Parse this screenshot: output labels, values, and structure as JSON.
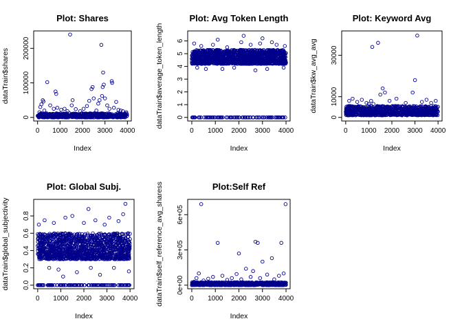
{
  "figure": {
    "point_color": "#00008B",
    "panels": [
      {
        "id": "shares",
        "title": "Plot: Shares",
        "xlabel": "Index",
        "ylabel": "dataTrain$shares",
        "xticks": [
          "0",
          "1000",
          "2000",
          "3000",
          "4000"
        ],
        "yticks": [
          "0",
          "100000",
          "200000"
        ]
      },
      {
        "id": "avg-token-length",
        "title": "Plot: Avg Token Length",
        "xlabel": "Index",
        "ylabel": "dataTrain$average_token_length",
        "xticks": [
          "0",
          "1000",
          "2000",
          "3000",
          "4000"
        ],
        "yticks": [
          "0",
          "1",
          "2",
          "3",
          "4",
          "5",
          "6"
        ]
      },
      {
        "id": "keyword-avg",
        "title": "Plot: Keyword Avg",
        "xlabel": "Index",
        "ylabel": "dataTrain$kw_avg_avg",
        "xticks": [
          "0",
          "1000",
          "2000",
          "3000",
          "4000"
        ],
        "yticks": [
          "0",
          "10000",
          "30000"
        ]
      },
      {
        "id": "global-subjectivity",
        "title": "Plot: Global Subj.",
        "xlabel": "Index",
        "ylabel": "dataTrain$global_subjectivity",
        "xticks": [
          "0",
          "1000",
          "2000",
          "3000",
          "4000"
        ],
        "yticks": [
          "0.0",
          "0.2",
          "0.4",
          "0.6",
          "0.8"
        ]
      },
      {
        "id": "self-ref",
        "title": "Plot:Self Ref",
        "xlabel": "Index",
        "ylabel": "dataTrain$self_reference_avg_sharess",
        "xticks": [
          "0",
          "1000",
          "2000",
          "3000",
          "4000"
        ],
        "yticks": [
          "0e+00",
          "3e+05",
          "6e+05"
        ]
      }
    ]
  },
  "chart_data": [
    {
      "type": "scatter",
      "title": "Plot: Shares",
      "xlabel": "Index",
      "ylabel": "dataTrain$shares",
      "xlim": [
        0,
        4000
      ],
      "ylim": [
        0,
        240000
      ],
      "grid": false,
      "yticks": [
        0,
        100000,
        200000
      ],
      "dense_band": {
        "y_min": 0,
        "y_max": 12000,
        "n": 600
      },
      "points": [
        [
          80,
          15000
        ],
        [
          120,
          30000
        ],
        [
          170,
          38000
        ],
        [
          230,
          50000
        ],
        [
          260,
          46000
        ],
        [
          300,
          20000
        ],
        [
          430,
          102000
        ],
        [
          560,
          35000
        ],
        [
          720,
          25000
        ],
        [
          800,
          75000
        ],
        [
          830,
          68000
        ],
        [
          880,
          28000
        ],
        [
          1050,
          22000
        ],
        [
          1200,
          25000
        ],
        [
          1330,
          18000
        ],
        [
          1450,
          240000
        ],
        [
          1520,
          35000
        ],
        [
          1560,
          50000
        ],
        [
          1700,
          24000
        ],
        [
          1900,
          18000
        ],
        [
          2050,
          25000
        ],
        [
          2200,
          33000
        ],
        [
          2300,
          48000
        ],
        [
          2400,
          82000
        ],
        [
          2450,
          88000
        ],
        [
          2500,
          55000
        ],
        [
          2620,
          20000
        ],
        [
          2700,
          40000
        ],
        [
          2760,
          50000
        ],
        [
          2840,
          210000
        ],
        [
          2870,
          62000
        ],
        [
          2900,
          88000
        ],
        [
          2920,
          130000
        ],
        [
          2950,
          95000
        ],
        [
          3000,
          55000
        ],
        [
          3100,
          35000
        ],
        [
          3200,
          25000
        ],
        [
          3300,
          105000
        ],
        [
          3320,
          100000
        ],
        [
          3400,
          28000
        ],
        [
          3500,
          45000
        ],
        [
          3600,
          22000
        ],
        [
          3700,
          20000
        ],
        [
          3800,
          18000
        ],
        [
          3950,
          15000
        ]
      ]
    },
    {
      "type": "scatter",
      "title": "Plot: Avg Token Length",
      "xlabel": "Index",
      "ylabel": "dataTrain$average_token_length",
      "xlim": [
        0,
        4000
      ],
      "ylim": [
        0,
        6.5
      ],
      "grid": false,
      "yticks": [
        0,
        1,
        2,
        3,
        4,
        5,
        6
      ],
      "dense_band": {
        "y_min": 4.2,
        "y_max": 5.3,
        "n": 1400
      },
      "zero_points": 90,
      "points": [
        [
          100,
          5.8
        ],
        [
          230,
          3.9
        ],
        [
          400,
          5.6
        ],
        [
          600,
          3.8
        ],
        [
          900,
          5.7
        ],
        [
          1100,
          6.1
        ],
        [
          1300,
          3.8
        ],
        [
          1500,
          5.5
        ],
        [
          1800,
          3.9
        ],
        [
          2100,
          5.9
        ],
        [
          2200,
          6.4
        ],
        [
          2500,
          5.7
        ],
        [
          2700,
          3.7
        ],
        [
          2900,
          5.8
        ],
        [
          3000,
          6.2
        ],
        [
          3200,
          3.8
        ],
        [
          3400,
          5.9
        ],
        [
          3600,
          5.7
        ],
        [
          3900,
          3.9
        ],
        [
          3950,
          5.6
        ]
      ]
    },
    {
      "type": "scatter",
      "title": "Plot: Keyword Avg",
      "xlabel": "Index",
      "ylabel": "dataTrain$kw_avg_avg",
      "xlim": [
        0,
        4000
      ],
      "ylim": [
        0,
        40000
      ],
      "grid": false,
      "yticks": [
        0,
        10000,
        30000
      ],
      "dense_band": {
        "y_min": 1000,
        "y_max": 5500,
        "n": 900
      },
      "points": [
        [
          150,
          8000
        ],
        [
          300,
          9000
        ],
        [
          500,
          7500
        ],
        [
          700,
          8500
        ],
        [
          900,
          7000
        ],
        [
          1000,
          6500
        ],
        [
          1100,
          8000
        ],
        [
          1150,
          34000
        ],
        [
          1200,
          6500
        ],
        [
          1400,
          36000
        ],
        [
          1500,
          11000
        ],
        [
          1600,
          14000
        ],
        [
          1700,
          12000
        ],
        [
          1900,
          8000
        ],
        [
          2200,
          9000
        ],
        [
          2600,
          7000
        ],
        [
          2900,
          12000
        ],
        [
          3000,
          18000
        ],
        [
          3100,
          39500
        ],
        [
          3300,
          7500
        ],
        [
          3500,
          8500
        ],
        [
          3700,
          7000
        ],
        [
          3900,
          8000
        ]
      ]
    },
    {
      "type": "scatter",
      "title": "Plot: Global Subj.",
      "xlabel": "Index",
      "ylabel": "dataTrain$global_subjectivity",
      "xlim": [
        0,
        4000
      ],
      "ylim": [
        0,
        0.95
      ],
      "grid": false,
      "yticks": [
        0.0,
        0.2,
        0.4,
        0.6,
        0.8
      ],
      "dense_band": {
        "y_min": 0.3,
        "y_max": 0.6,
        "n": 1300
      },
      "zero_points": 120,
      "points": [
        [
          50,
          0.7
        ],
        [
          300,
          0.75
        ],
        [
          500,
          0.2
        ],
        [
          700,
          0.72
        ],
        [
          900,
          0.18
        ],
        [
          1100,
          0.1
        ],
        [
          1200,
          0.78
        ],
        [
          1500,
          0.8
        ],
        [
          1700,
          0.15
        ],
        [
          2000,
          0.72
        ],
        [
          2200,
          0.88
        ],
        [
          2300,
          0.2
        ],
        [
          2500,
          0.75
        ],
        [
          2700,
          0.12
        ],
        [
          2900,
          0.7
        ],
        [
          3100,
          0.78
        ],
        [
          3300,
          0.2
        ],
        [
          3500,
          0.74
        ],
        [
          3700,
          0.82
        ],
        [
          3800,
          0.94
        ],
        [
          3950,
          0.16
        ]
      ]
    },
    {
      "type": "scatter",
      "title": "Plot:Self Ref",
      "xlabel": "Index",
      "ylabel": "dataTrain$self_reference_avg_sharess",
      "xlim": [
        0,
        4000
      ],
      "ylim": [
        0,
        700000
      ],
      "grid": false,
      "yticks": [
        0,
        300000,
        600000
      ],
      "dense_band": {
        "y_min": 0,
        "y_max": 25000,
        "n": 700
      },
      "points": [
        [
          100,
          30000
        ],
        [
          200,
          60000
        ],
        [
          300,
          100000
        ],
        [
          400,
          690000
        ],
        [
          500,
          40000
        ],
        [
          700,
          55000
        ],
        [
          900,
          70000
        ],
        [
          1100,
          360000
        ],
        [
          1300,
          80000
        ],
        [
          1500,
          45000
        ],
        [
          1700,
          60000
        ],
        [
          1900,
          95000
        ],
        [
          2000,
          270000
        ],
        [
          2100,
          50000
        ],
        [
          2300,
          140000
        ],
        [
          2500,
          70000
        ],
        [
          2600,
          120000
        ],
        [
          2700,
          370000
        ],
        [
          2800,
          360000
        ],
        [
          2900,
          60000
        ],
        [
          3000,
          200000
        ],
        [
          3200,
          90000
        ],
        [
          3400,
          230000
        ],
        [
          3500,
          50000
        ],
        [
          3700,
          80000
        ],
        [
          3800,
          360000
        ],
        [
          3900,
          100000
        ],
        [
          3980,
          690000
        ]
      ]
    }
  ]
}
